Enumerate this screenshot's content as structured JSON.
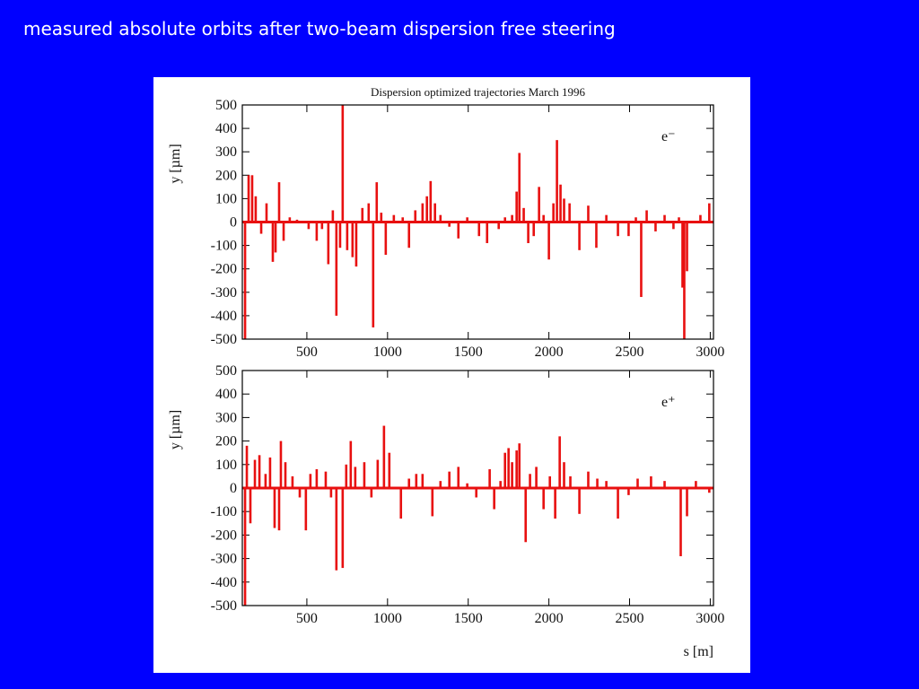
{
  "slide_title": "measured absolute orbits after two-beam dispersion free steering",
  "chart_data": [
    {
      "type": "bar",
      "title": "Dispersion optimized trajectories March 1996",
      "ylabel": "y [µm]",
      "annotation": "e⁻",
      "color": "#e81010",
      "xlim": [
        100,
        3020
      ],
      "ylim": [
        -500,
        500
      ],
      "xticks": [
        500,
        1000,
        1500,
        2000,
        2500,
        3000
      ],
      "yticks": [
        -500,
        -400,
        -300,
        -200,
        -100,
        0,
        100,
        200,
        300,
        400,
        500
      ],
      "x": [
        117,
        139,
        161,
        183,
        217,
        250,
        289,
        306,
        328,
        356,
        394,
        439,
        511,
        561,
        594,
        633,
        661,
        683,
        706,
        722,
        750,
        783,
        806,
        844,
        883,
        911,
        933,
        961,
        989,
        1039,
        1094,
        1133,
        1172,
        1217,
        1244,
        1267,
        1294,
        1328,
        1383,
        1439,
        1494,
        1567,
        1617,
        1689,
        1728,
        1772,
        1800,
        1817,
        1844,
        1872,
        1906,
        1939,
        1967,
        2000,
        2028,
        2050,
        2072,
        2094,
        2128,
        2189,
        2244,
        2294,
        2356,
        2428,
        2494,
        2539,
        2572,
        2606,
        2661,
        2717,
        2772,
        2806,
        2828,
        2839,
        2856,
        2939,
        2994
      ],
      "values": [
        -500,
        200,
        200,
        110,
        -50,
        80,
        -170,
        -130,
        170,
        -80,
        20,
        10,
        -30,
        -80,
        -30,
        -180,
        50,
        -400,
        -110,
        500,
        -120,
        -150,
        -190,
        60,
        80,
        -450,
        170,
        40,
        -140,
        30,
        20,
        -110,
        50,
        80,
        110,
        175,
        80,
        30,
        -20,
        -70,
        20,
        -60,
        -90,
        -30,
        20,
        30,
        130,
        295,
        60,
        -90,
        -60,
        150,
        30,
        -160,
        80,
        350,
        160,
        100,
        80,
        -120,
        70,
        -110,
        30,
        -60,
        -60,
        20,
        -320,
        50,
        -40,
        30,
        -30,
        20,
        -280,
        -500,
        -210,
        30,
        80
      ]
    },
    {
      "type": "bar",
      "ylabel": "y [µm]",
      "xlabel": "s [m]",
      "annotation": "e⁺",
      "color": "#e81010",
      "xlim": [
        100,
        3020
      ],
      "ylim": [
        -500,
        500
      ],
      "xticks": [
        500,
        1000,
        1500,
        2000,
        2500,
        3000
      ],
      "yticks": [
        -500,
        -400,
        -300,
        -200,
        -100,
        0,
        100,
        200,
        300,
        400,
        500
      ],
      "x": [
        117,
        128,
        150,
        178,
        206,
        244,
        272,
        300,
        328,
        339,
        367,
        411,
        456,
        494,
        522,
        561,
        617,
        650,
        683,
        722,
        744,
        772,
        800,
        856,
        900,
        939,
        978,
        1011,
        1083,
        1133,
        1178,
        1217,
        1278,
        1328,
        1383,
        1439,
        1494,
        1550,
        1633,
        1661,
        1700,
        1728,
        1750,
        1772,
        1800,
        1817,
        1856,
        1883,
        1922,
        1967,
        2006,
        2039,
        2067,
        2094,
        2133,
        2189,
        2244,
        2300,
        2356,
        2428,
        2494,
        2550,
        2633,
        2717,
        2817,
        2856,
        2911,
        2994
      ],
      "values": [
        -500,
        180,
        -150,
        120,
        140,
        60,
        130,
        -170,
        -180,
        200,
        110,
        50,
        -40,
        -180,
        60,
        80,
        70,
        -40,
        -350,
        -340,
        100,
        200,
        90,
        110,
        -40,
        120,
        265,
        150,
        -130,
        40,
        60,
        60,
        -120,
        30,
        70,
        90,
        20,
        -40,
        80,
        -90,
        30,
        150,
        170,
        110,
        160,
        190,
        -230,
        60,
        90,
        -90,
        50,
        -130,
        220,
        110,
        50,
        -110,
        70,
        40,
        30,
        -130,
        -30,
        40,
        50,
        30,
        -290,
        -120,
        30,
        -20
      ]
    }
  ]
}
